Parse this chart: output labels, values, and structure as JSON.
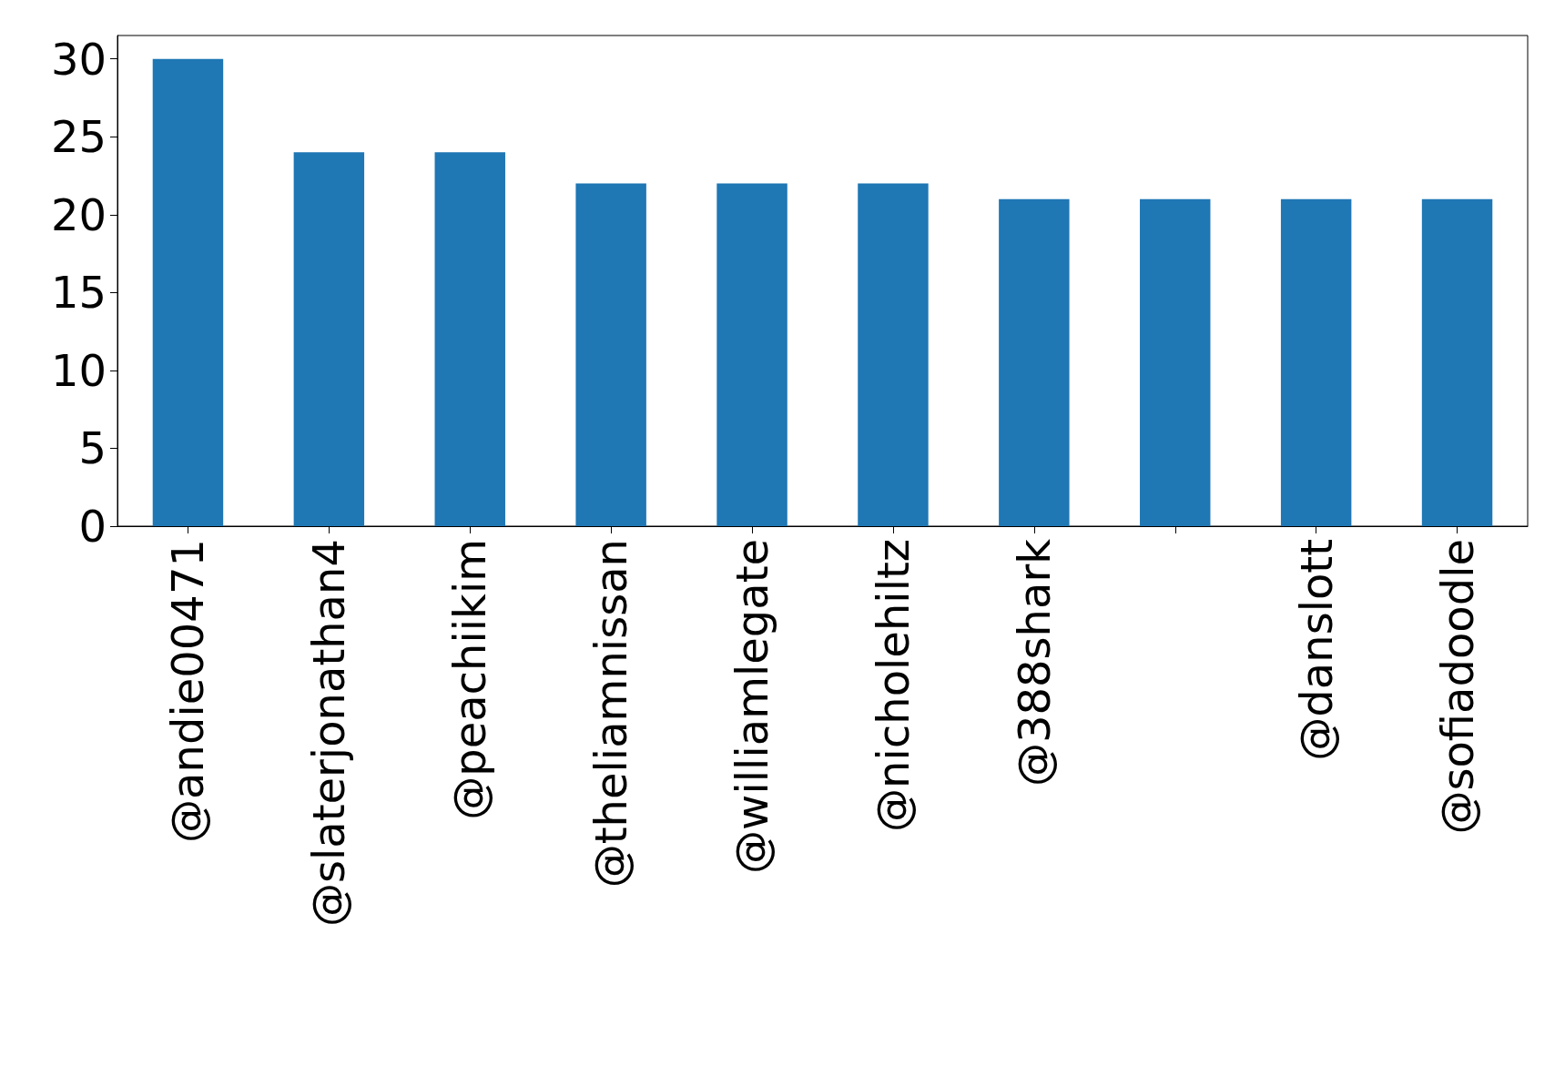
{
  "chart_data": {
    "type": "bar",
    "categories": [
      "@andie00471",
      "@slaterjonathan4",
      "@peachiikim",
      "@theliamnissan",
      "@williamlegate",
      "@nicholehiltz",
      "@388shark",
      null,
      "@danslott",
      "@sofiadoodle"
    ],
    "values": [
      30,
      24,
      24,
      22,
      22,
      22,
      21,
      21,
      21,
      21
    ],
    "color": "#1f77b4",
    "ylim": [
      0,
      31.5
    ],
    "yticks": [
      0,
      5,
      10,
      15,
      20,
      25,
      30
    ],
    "grid": false
  }
}
